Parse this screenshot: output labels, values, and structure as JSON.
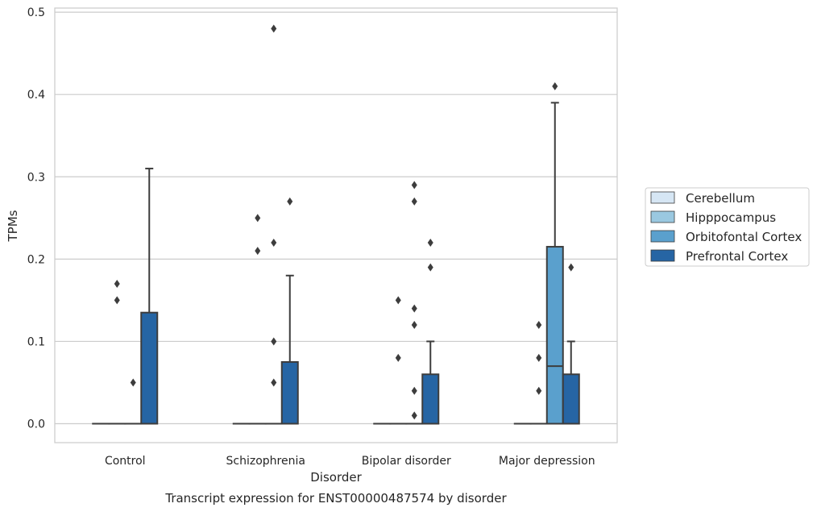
{
  "chart_data": {
    "type": "box",
    "caption": "Transcript expression for ENST00000487574 by disorder",
    "xlabel": "Disorder",
    "ylabel": "TPMs",
    "ylim": [
      -0.023,
      0.505
    ],
    "yticks": [
      0.0,
      0.1,
      0.2,
      0.3,
      0.4,
      0.5
    ],
    "ytick_labels": [
      "0.0",
      "0.1",
      "0.2",
      "0.3",
      "0.4",
      "0.5"
    ],
    "grid": "horizontal",
    "legend_position": "right",
    "categories": [
      "Control",
      "Schizophrenia",
      "Bipolar disorder",
      "Major depression"
    ],
    "series": [
      {
        "name": "Cerebellum",
        "color": "#d6e6f4",
        "boxes": [
          {
            "q1": 0,
            "median": 0,
            "q3": 0,
            "whisker_low": 0,
            "whisker_high": 0,
            "outliers": []
          },
          {
            "q1": 0,
            "median": 0,
            "q3": 0,
            "whisker_low": 0,
            "whisker_high": 0,
            "outliers": []
          },
          {
            "q1": 0,
            "median": 0,
            "q3": 0,
            "whisker_low": 0,
            "whisker_high": 0,
            "outliers": []
          },
          {
            "q1": 0,
            "median": 0,
            "q3": 0,
            "whisker_low": 0,
            "whisker_high": 0,
            "outliers": []
          }
        ]
      },
      {
        "name": "Hipppocampus",
        "color": "#9ac8e0",
        "boxes": [
          {
            "q1": 0,
            "median": 0,
            "q3": 0,
            "whisker_low": 0,
            "whisker_high": 0,
            "outliers": [
              0.15,
              0.17
            ]
          },
          {
            "q1": 0,
            "median": 0,
            "q3": 0,
            "whisker_low": 0,
            "whisker_high": 0,
            "outliers": [
              0.25,
              0.21
            ]
          },
          {
            "q1": 0,
            "median": 0,
            "q3": 0,
            "whisker_low": 0,
            "whisker_high": 0,
            "outliers": [
              0.15,
              0.08
            ]
          },
          {
            "q1": 0,
            "median": 0,
            "q3": 0,
            "whisker_low": 0,
            "whisker_high": 0,
            "outliers": [
              0.12,
              0.08,
              0.04
            ]
          }
        ]
      },
      {
        "name": "Orbitofontal Cortex",
        "color": "#5aa0cd",
        "boxes": [
          {
            "q1": 0,
            "median": 0,
            "q3": 0,
            "whisker_low": 0,
            "whisker_high": 0,
            "outliers": [
              0.05
            ]
          },
          {
            "q1": 0,
            "median": 0,
            "q3": 0,
            "whisker_low": 0,
            "whisker_high": 0,
            "outliers": [
              0.48,
              0.22,
              0.1,
              0.05
            ]
          },
          {
            "q1": 0,
            "median": 0,
            "q3": 0,
            "whisker_low": 0,
            "whisker_high": 0,
            "outliers": [
              0.27,
              0.29,
              0.14,
              0.12,
              0.04,
              0.01
            ]
          },
          {
            "q1": 0,
            "median": 0.07,
            "q3": 0.215,
            "whisker_low": 0,
            "whisker_high": 0.39,
            "outliers": [
              0.41
            ]
          }
        ]
      },
      {
        "name": "Prefrontal Cortex",
        "color": "#2665a4",
        "boxes": [
          {
            "q1": 0,
            "median": 0,
            "q3": 0.135,
            "whisker_low": 0,
            "whisker_high": 0.31,
            "outliers": []
          },
          {
            "q1": 0,
            "median": 0,
            "q3": 0.075,
            "whisker_low": 0,
            "whisker_high": 0.18,
            "outliers": [
              0.27
            ]
          },
          {
            "q1": 0,
            "median": 0,
            "q3": 0.06,
            "whisker_low": 0,
            "whisker_high": 0.1,
            "outliers": [
              0.22,
              0.19
            ]
          },
          {
            "q1": 0,
            "median": 0,
            "q3": 0.06,
            "whisker_low": 0,
            "whisker_high": 0.1,
            "outliers": [
              0.19
            ]
          }
        ]
      }
    ]
  }
}
